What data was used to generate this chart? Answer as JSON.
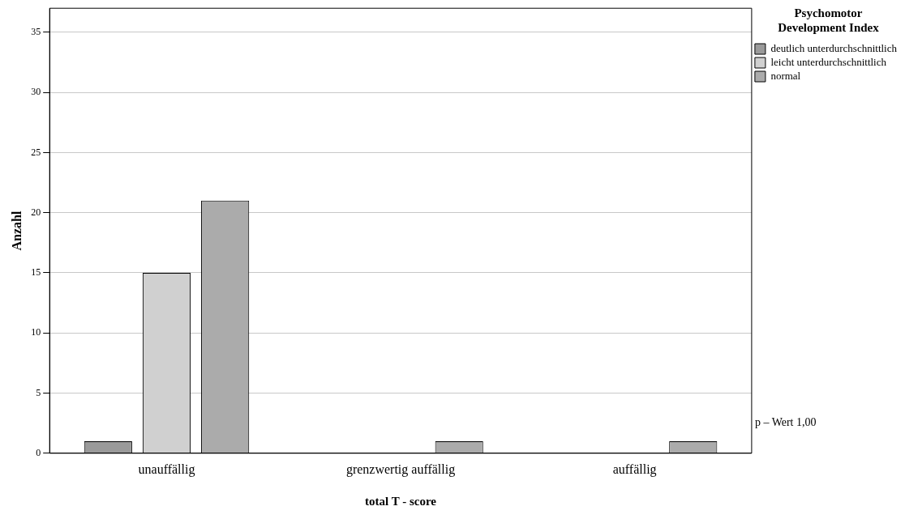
{
  "chart_data": {
    "type": "bar",
    "xlabel": "total T - score",
    "ylabel": "Anzahl",
    "legend_title": "Psychomotor\nDevelopment Index",
    "categories": [
      "unauffällig",
      "grenzwertig auffällig",
      "auffällig"
    ],
    "series": [
      {
        "name": "deutlich unterdurchschnittlich",
        "color": "#9a9a9a",
        "values": [
          1,
          null,
          null
        ]
      },
      {
        "name": "leicht unterdurchschnittlich",
        "color": "#d0d0d0",
        "values": [
          15,
          null,
          null
        ]
      },
      {
        "name": "normal",
        "color": "#ababab",
        "values": [
          21,
          1,
          1
        ]
      }
    ],
    "ylim": [
      0,
      37
    ],
    "yticks": [
      0,
      5,
      10,
      15,
      20,
      25,
      30,
      35
    ],
    "grid": "y",
    "legend": "top right",
    "annotations": [
      "p – Wert 1,00"
    ]
  }
}
